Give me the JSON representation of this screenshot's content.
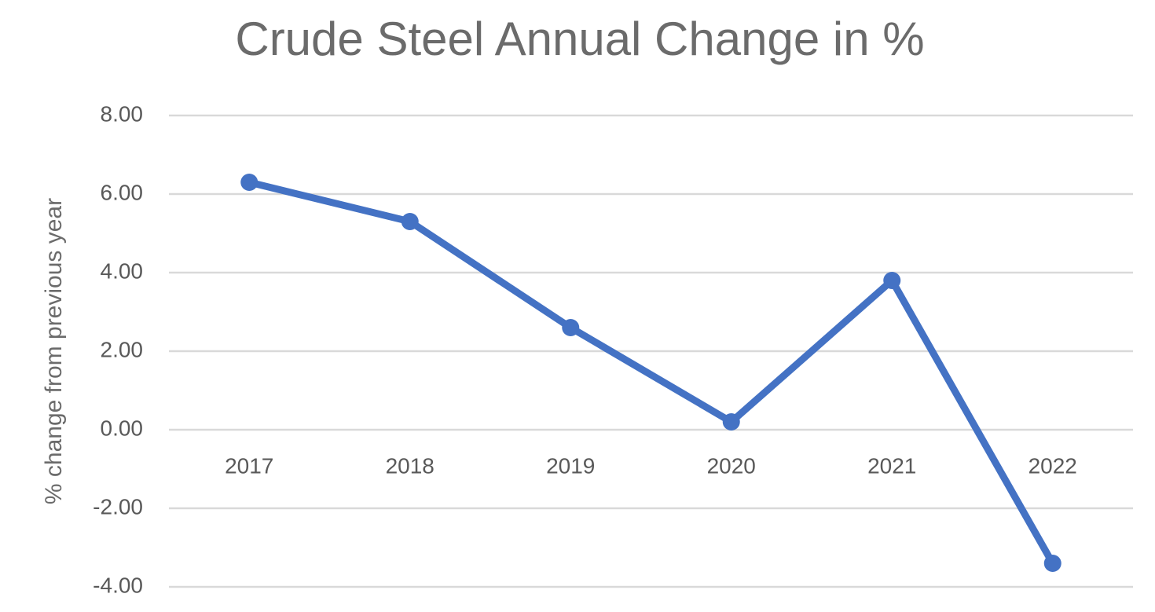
{
  "chart_data": {
    "type": "line",
    "title": "Crude Steel Annual Change in %",
    "y_label": "% change from previous year",
    "categories": [
      "2017",
      "2018",
      "2019",
      "2020",
      "2021",
      "2022"
    ],
    "values": [
      6.3,
      5.3,
      2.6,
      0.2,
      3.8,
      -3.4
    ],
    "color": "#4472c4",
    "ylim": [
      -4,
      8
    ],
    "yticks": [
      {
        "value": -4,
        "label": "-4.00"
      },
      {
        "value": -2,
        "label": "-2.00"
      },
      {
        "value": 0,
        "label": "0.00"
      },
      {
        "value": 2,
        "label": "2.00"
      },
      {
        "value": 4,
        "label": "4.00"
      },
      {
        "value": 6,
        "label": "6.00"
      },
      {
        "value": 8,
        "label": "8.00"
      }
    ],
    "grid": true
  }
}
